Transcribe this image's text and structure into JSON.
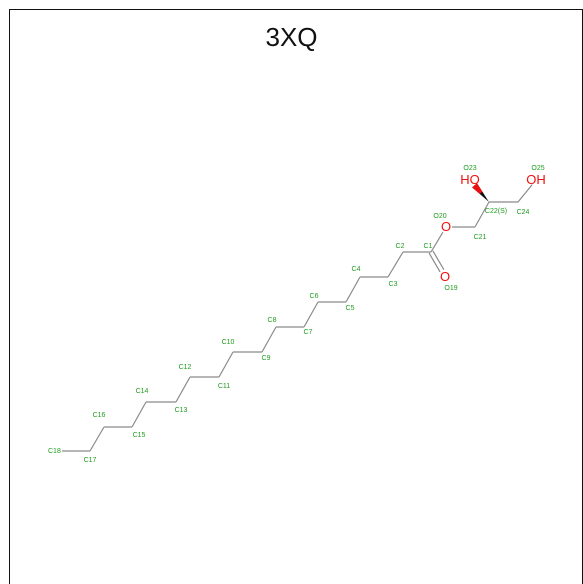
{
  "title": "3XQ",
  "atoms": [
    {
      "id": "C18",
      "label": "C18"
    },
    {
      "id": "C17",
      "label": "C17"
    },
    {
      "id": "C16",
      "label": "C16"
    },
    {
      "id": "C15",
      "label": "C15"
    },
    {
      "id": "C14",
      "label": "C14"
    },
    {
      "id": "C13",
      "label": "C13"
    },
    {
      "id": "C12",
      "label": "C12"
    },
    {
      "id": "C11",
      "label": "C11"
    },
    {
      "id": "C10",
      "label": "C10"
    },
    {
      "id": "C9",
      "label": "C9"
    },
    {
      "id": "C8",
      "label": "C8"
    },
    {
      "id": "C7",
      "label": "C7"
    },
    {
      "id": "C6",
      "label": "C6"
    },
    {
      "id": "C5",
      "label": "C5"
    },
    {
      "id": "C4",
      "label": "C4"
    },
    {
      "id": "C3",
      "label": "C3"
    },
    {
      "id": "C2",
      "label": "C2"
    },
    {
      "id": "C1",
      "label": "C1"
    },
    {
      "id": "O19",
      "label": "O19",
      "symbol": "O"
    },
    {
      "id": "O20",
      "label": "O20",
      "symbol": "O"
    },
    {
      "id": "C21",
      "label": "C21"
    },
    {
      "id": "C22",
      "label": "C22(S)"
    },
    {
      "id": "O23",
      "label": "O23",
      "symbol": "HO"
    },
    {
      "id": "C24",
      "label": "C24"
    },
    {
      "id": "O25",
      "label": "O25",
      "symbol": "OH"
    }
  ],
  "colors": {
    "bond": "#8a8a8a",
    "carbon_label": "#1e9c1e",
    "heteroatom": "#ee1010"
  }
}
